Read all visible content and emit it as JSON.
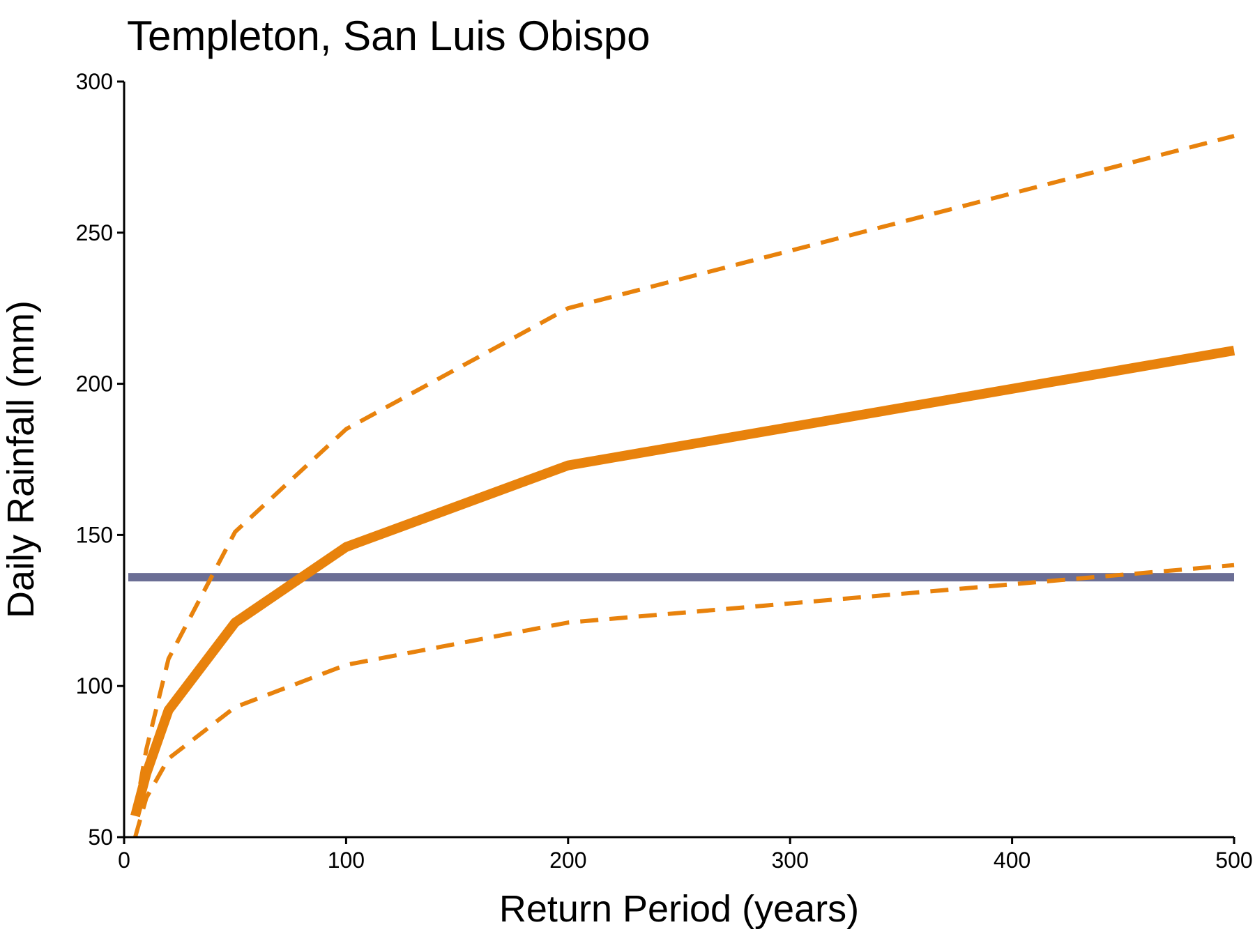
{
  "chart_data": {
    "type": "line",
    "title": "Templeton, San Luis Obispo",
    "x_label": "Return Period (years)",
    "y_label": "Daily Rainfall (mm)",
    "x": [
      5,
      10,
      20,
      50,
      100,
      200,
      500
    ],
    "series": [
      {
        "color": "#e8820c",
        "width": 14,
        "dashed": false,
        "values": [
          57,
          71,
          92,
          121,
          146,
          173,
          211
        ]
      },
      {
        "color": "#e8820c",
        "width": 6,
        "dashed": true,
        "values": [
          58,
          79,
          109,
          151,
          185,
          225,
          282
        ]
      },
      {
        "color": "#e8820c",
        "width": 6,
        "dashed": true,
        "values": [
          50,
          63,
          76,
          93,
          107,
          121,
          140
        ]
      }
    ],
    "reference_line": {
      "value": 136,
      "color": "#6b6e95",
      "width": 12
    },
    "xlim": [
      0,
      500
    ],
    "xticks": [
      0,
      100,
      200,
      300,
      400,
      500
    ],
    "ylim": [
      50,
      300
    ],
    "yticks": [
      50,
      100,
      150,
      200,
      250,
      300
    ]
  }
}
